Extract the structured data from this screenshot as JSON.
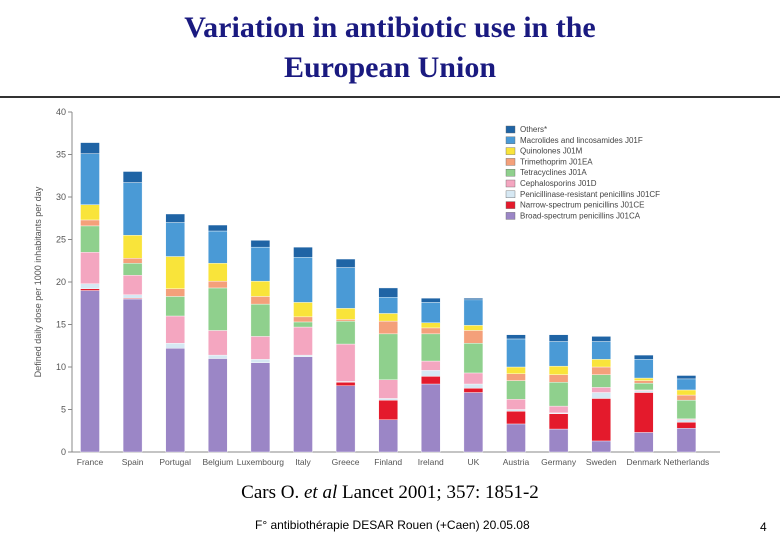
{
  "slide": {
    "title_line1": "Variation in antibiotic use in the",
    "title_line2": "European Union",
    "citation_pre": "Cars O. ",
    "citation_ital": "et al",
    "citation_post": " Lancet 2001; 357: 1851-2",
    "footer": "F° antibiothérapie DESAR Rouen (+Caen) 20.05.08",
    "page_number": "4"
  },
  "chart_data": {
    "type": "bar",
    "stacked": true,
    "ylabel": "Defined daily dose per 1000 inhabitants per day",
    "ylim": [
      0,
      40
    ],
    "yticks": [
      0,
      5,
      10,
      15,
      20,
      25,
      30,
      35,
      40
    ],
    "legend_position": "top-right",
    "categories": [
      "France",
      "Spain",
      "Portugal",
      "Belgium",
      "Luxembourg",
      "Italy",
      "Greece",
      "Finland",
      "Ireland",
      "UK",
      "Austria",
      "Germany",
      "Sweden",
      "Denmark",
      "Netherlands"
    ],
    "series": [
      {
        "name": "Broad-spectrum penicillins J01CA",
        "color": "#9b86c6",
        "values": [
          19.0,
          18.0,
          12.2,
          11.0,
          10.5,
          11.2,
          7.8,
          3.8,
          8.0,
          7.0,
          3.3,
          2.7,
          1.3,
          2.3,
          2.8
        ]
      },
      {
        "name": "Narrow-spectrum penicillins J01CE",
        "color": "#e41a2c",
        "values": [
          0.2,
          0.1,
          0.0,
          0.0,
          0.0,
          0.0,
          0.4,
          2.3,
          0.9,
          0.5,
          1.5,
          1.8,
          5.0,
          4.7,
          0.7
        ]
      },
      {
        "name": "Penicillinase-resistant penicillins J01CF",
        "color": "#d6e8f3",
        "values": [
          0.6,
          0.4,
          0.6,
          0.4,
          0.4,
          0.2,
          0.1,
          0.2,
          0.7,
          0.5,
          0.2,
          0.1,
          0.7,
          0.2,
          0.3
        ]
      },
      {
        "name": "Cephalosporins J01D",
        "color": "#f4a6c0",
        "values": [
          3.7,
          2.3,
          3.2,
          2.9,
          2.7,
          3.3,
          4.4,
          2.2,
          1.1,
          1.3,
          1.2,
          0.8,
          0.6,
          0.1,
          0.1
        ]
      },
      {
        "name": "Tetracyclines J01A",
        "color": "#8fd08d",
        "values": [
          3.1,
          1.4,
          2.3,
          5.0,
          3.8,
          0.6,
          2.7,
          5.4,
          3.2,
          3.5,
          2.2,
          2.8,
          1.5,
          0.8,
          2.2
        ]
      },
      {
        "name": "Trimethoprim J01EA",
        "color": "#f4a07a",
        "values": [
          0.7,
          0.6,
          0.9,
          0.8,
          0.9,
          0.6,
          0.2,
          1.5,
          0.7,
          1.5,
          0.8,
          0.9,
          0.9,
          0.3,
          0.6
        ]
      },
      {
        "name": "Quinolones J01M",
        "color": "#f9e43a",
        "values": [
          1.8,
          2.7,
          3.8,
          2.1,
          1.8,
          1.7,
          1.3,
          0.9,
          0.6,
          0.6,
          0.8,
          1.0,
          0.9,
          0.3,
          0.6
        ]
      },
      {
        "name": "Macrolides and lincosamides J01F",
        "color": "#4a9ad6",
        "values": [
          6.0,
          6.2,
          4.0,
          3.8,
          4.0,
          5.3,
          4.8,
          1.9,
          2.4,
          3.0,
          3.3,
          2.9,
          2.1,
          2.2,
          1.3
        ]
      },
      {
        "name": "Others*",
        "color": "#1f64a5",
        "values": [
          1.3,
          1.3,
          1.0,
          0.7,
          0.8,
          1.2,
          1.0,
          1.1,
          0.5,
          0.2,
          0.5,
          0.8,
          0.6,
          0.5,
          0.4
        ]
      }
    ]
  }
}
